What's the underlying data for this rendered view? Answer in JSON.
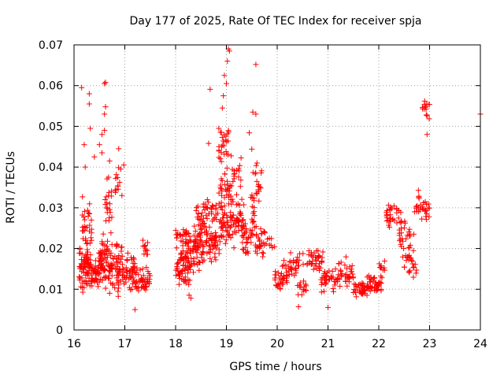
{
  "chart_data": {
    "type": "scatter",
    "title": "Day 177 of 2025, Rate Of TEC Index for receiver spja",
    "xlabel": "GPS time / hours",
    "ylabel": "ROTI / TECUs",
    "xlim": [
      16,
      24
    ],
    "ylim": [
      0,
      0.07
    ],
    "xticks": [
      "16",
      "17",
      "18",
      "19",
      "20",
      "21",
      "22",
      "23",
      "24"
    ],
    "yticks": [
      "0",
      "0.01",
      "0.02",
      "0.03",
      "0.04",
      "0.05",
      "0.06",
      "0.07"
    ],
    "grid": true,
    "marker": "+",
    "color": "#ff0000",
    "series": [
      {
        "name": "spja",
        "clusters": [
          {
            "x": [
              16.1,
              16.3
            ],
            "y_center": 0.015,
            "y_spread": 0.006,
            "n": 70
          },
          {
            "x": [
              16.15,
              16.35
            ],
            "y_center": 0.025,
            "y_spread": 0.006,
            "n": 30
          },
          {
            "x": [
              16.3,
              16.5
            ],
            "y_center": 0.014,
            "y_spread": 0.004,
            "n": 50
          },
          {
            "x": [
              16.5,
              16.7
            ],
            "y_center": 0.017,
            "y_spread": 0.006,
            "n": 60
          },
          {
            "x": [
              16.6,
              16.75
            ],
            "y_center": 0.03,
            "y_spread": 0.007,
            "n": 20
          },
          {
            "x": [
              16.7,
              16.95
            ],
            "y_center": 0.015,
            "y_spread": 0.006,
            "n": 60
          },
          {
            "x": [
              16.8,
              16.95
            ],
            "y_center": 0.035,
            "y_spread": 0.005,
            "n": 12
          },
          {
            "x": [
              16.95,
              17.2
            ],
            "y_center": 0.015,
            "y_spread": 0.004,
            "n": 50
          },
          {
            "x": [
              17.2,
              17.5
            ],
            "y_center": 0.012,
            "y_spread": 0.003,
            "n": 50
          },
          {
            "x": [
              17.35,
              17.5
            ],
            "y_center": 0.02,
            "y_spread": 0.002,
            "n": 12
          },
          {
            "x": [
              18.0,
              18.3
            ],
            "y_center": 0.016,
            "y_spread": 0.006,
            "n": 70
          },
          {
            "x": [
              18.0,
              18.3
            ],
            "y_center": 0.023,
            "y_spread": 0.003,
            "n": 30
          },
          {
            "x": [
              18.3,
              18.55
            ],
            "y_center": 0.02,
            "y_spread": 0.006,
            "n": 60
          },
          {
            "x": [
              18.4,
              18.6
            ],
            "y_center": 0.028,
            "y_spread": 0.004,
            "n": 25
          },
          {
            "x": [
              18.55,
              18.8
            ],
            "y_center": 0.022,
            "y_spread": 0.005,
            "n": 50
          },
          {
            "x": [
              18.6,
              18.8
            ],
            "y_center": 0.03,
            "y_spread": 0.004,
            "n": 20
          },
          {
            "x": [
              18.8,
              19.1
            ],
            "y_center": 0.025,
            "y_spread": 0.006,
            "n": 50
          },
          {
            "x": [
              18.85,
              19.1
            ],
            "y_center": 0.034,
            "y_spread": 0.006,
            "n": 40
          },
          {
            "x": [
              18.85,
              19.05
            ],
            "y_center": 0.046,
            "y_spread": 0.005,
            "n": 25
          },
          {
            "x": [
              19.1,
              19.35
            ],
            "y_center": 0.027,
            "y_spread": 0.006,
            "n": 45
          },
          {
            "x": [
              19.1,
              19.3
            ],
            "y_center": 0.038,
            "y_spread": 0.004,
            "n": 15
          },
          {
            "x": [
              19.3,
              19.6
            ],
            "y_center": 0.023,
            "y_spread": 0.004,
            "n": 40
          },
          {
            "x": [
              19.45,
              19.6
            ],
            "y_center": 0.03,
            "y_spread": 0.003,
            "n": 10
          },
          {
            "x": [
              19.5,
              19.7
            ],
            "y_center": 0.036,
            "y_spread": 0.005,
            "n": 20
          },
          {
            "x": [
              19.6,
              19.95
            ],
            "y_center": 0.022,
            "y_spread": 0.004,
            "n": 30
          },
          {
            "x": [
              19.95,
              20.2
            ],
            "y_center": 0.012,
            "y_spread": 0.003,
            "n": 30
          },
          {
            "x": [
              20.1,
              20.45
            ],
            "y_center": 0.016,
            "y_spread": 0.003,
            "n": 35
          },
          {
            "x": [
              20.4,
              20.6
            ],
            "y_center": 0.01,
            "y_spread": 0.003,
            "n": 15
          },
          {
            "x": [
              20.5,
              20.9
            ],
            "y_center": 0.017,
            "y_spread": 0.003,
            "n": 40
          },
          {
            "x": [
              20.85,
              21.2
            ],
            "y_center": 0.012,
            "y_spread": 0.003,
            "n": 40
          },
          {
            "x": [
              21.2,
              21.5
            ],
            "y_center": 0.014,
            "y_spread": 0.003,
            "n": 35
          },
          {
            "x": [
              21.5,
              21.8
            ],
            "y_center": 0.01,
            "y_spread": 0.002,
            "n": 40
          },
          {
            "x": [
              21.8,
              22.05
            ],
            "y_center": 0.011,
            "y_spread": 0.002,
            "n": 40
          },
          {
            "x": [
              22.0,
              22.15
            ],
            "y_center": 0.016,
            "y_spread": 0.002,
            "n": 10
          },
          {
            "x": [
              22.15,
              22.45
            ],
            "y_center": 0.028,
            "y_spread": 0.003,
            "n": 35
          },
          {
            "x": [
              22.4,
              22.7
            ],
            "y_center": 0.022,
            "y_spread": 0.004,
            "n": 30
          },
          {
            "x": [
              22.5,
              22.75
            ],
            "y_center": 0.016,
            "y_spread": 0.003,
            "n": 20
          },
          {
            "x": [
              22.7,
              23.0
            ],
            "y_center": 0.03,
            "y_spread": 0.003,
            "n": 30
          },
          {
            "x": [
              22.85,
              23.0
            ],
            "y_center": 0.054,
            "y_spread": 0.003,
            "n": 14
          }
        ],
        "points": [
          [
            16.15,
            0.0595
          ],
          [
            16.2,
            0.0455
          ],
          [
            16.22,
            0.04
          ],
          [
            16.3,
            0.058
          ],
          [
            16.3,
            0.0555
          ],
          [
            16.32,
            0.0495
          ],
          [
            16.5,
            0.0455
          ],
          [
            16.6,
            0.0605
          ],
          [
            16.62,
            0.0608
          ],
          [
            16.62,
            0.0548
          ],
          [
            16.6,
            0.053
          ],
          [
            16.6,
            0.049
          ],
          [
            16.55,
            0.048
          ],
          [
            16.55,
            0.0435
          ],
          [
            16.4,
            0.0425
          ],
          [
            16.88,
            0.0445
          ],
          [
            16.92,
            0.0395
          ],
          [
            16.7,
            0.0415
          ],
          [
            16.98,
            0.0405
          ],
          [
            16.68,
            0.0375
          ],
          [
            17.2,
            0.005
          ],
          [
            18.68,
            0.0591
          ],
          [
            18.85,
            0.0495
          ],
          [
            18.9,
            0.0485
          ],
          [
            18.92,
            0.0545
          ],
          [
            18.94,
            0.0575
          ],
          [
            18.96,
            0.0625
          ],
          [
            19.0,
            0.0605
          ],
          [
            19.02,
            0.066
          ],
          [
            19.04,
            0.069
          ],
          [
            19.06,
            0.0685
          ],
          [
            19.58,
            0.0652
          ],
          [
            19.52,
            0.0535
          ],
          [
            19.58,
            0.053
          ],
          [
            19.45,
            0.0484
          ],
          [
            19.5,
            0.0444
          ],
          [
            18.65,
            0.0458
          ],
          [
            18.3,
            0.0078
          ],
          [
            20.42,
            0.0057
          ],
          [
            21.0,
            0.0055
          ],
          [
            22.95,
            0.048
          ],
          [
            24.0,
            0.053
          ]
        ]
      }
    ]
  }
}
